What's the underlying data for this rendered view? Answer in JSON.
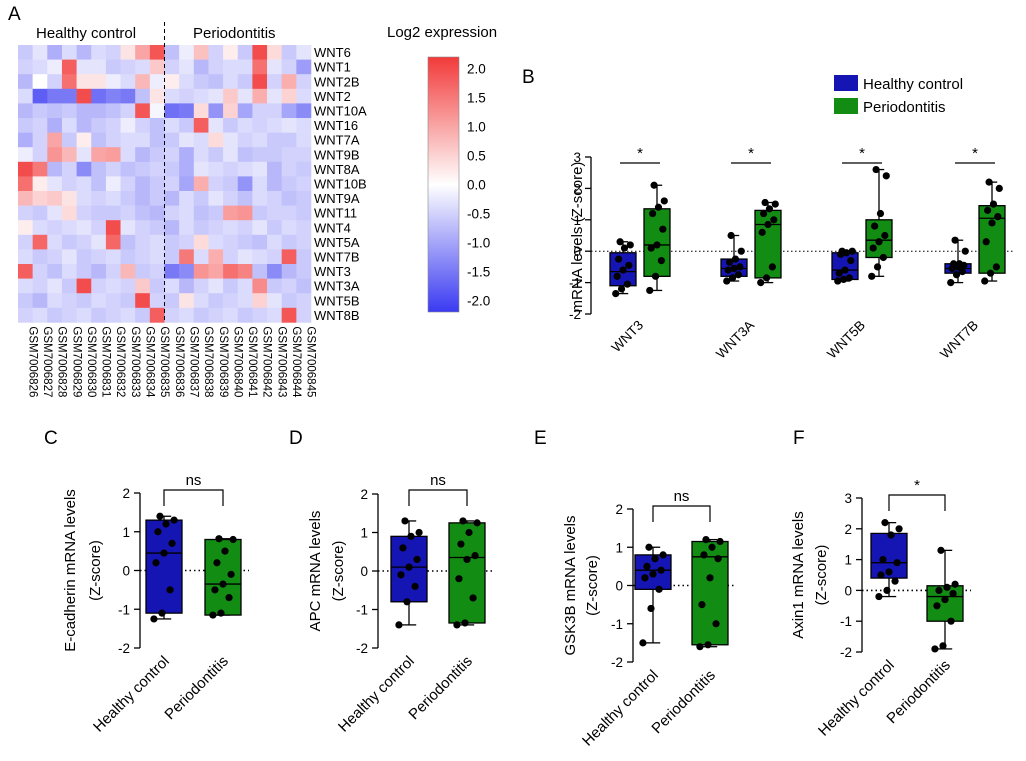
{
  "chart_data": [
    {
      "panel": "A",
      "type": "heatmap",
      "group_labels": [
        "Healthy control",
        "Periodontitis"
      ],
      "colorbar_title": "Log2 expression",
      "colorbar_ticks": [
        "2.0",
        "1.5",
        "1.0",
        "0.5",
        "0.0",
        "-0.5",
        "-1.0",
        "-1.5",
        "-2.0"
      ],
      "colorbar_range": [
        -2.2,
        2.2
      ],
      "colors": {
        "high": "#F23A3A",
        "mid": "#FFFFFF",
        "low": "#3A3AF2"
      },
      "rows": [
        "WNT6",
        "WNT1",
        "WNT2B",
        "WNT2",
        "WNT10A",
        "WNT16",
        "WNT7A",
        "WNT9B",
        "WNT8A",
        "WNT10B",
        "WNT9A",
        "WNT11",
        "WNT4",
        "WNT5A",
        "WNT7B",
        "WNT3",
        "WNT3A",
        "WNT5B",
        "WNT8B"
      ],
      "columns": [
        "GSM7006826",
        "GSM7006827",
        "GSM7006828",
        "GSM7006829",
        "GSM7006830",
        "GSM7006831",
        "GSM7006832",
        "GSM7006833",
        "GSM7006834",
        "GSM7006835",
        "GSM7006836",
        "GSM7006837",
        "GSM7006838",
        "GSM7006839",
        "GSM7006840",
        "GSM7006841",
        "GSM7006842",
        "GSM7006843",
        "GSM7006844",
        "GSM7006845"
      ],
      "values": [
        [
          -0.6,
          -0.3,
          -0.9,
          -0.4,
          -0.8,
          -0.4,
          -0.5,
          0.3,
          1.0,
          1.9,
          -0.7,
          -0.2,
          0.7,
          -0.5,
          0.2,
          -0.6,
          2.0,
          0.4,
          -0.6,
          -0.3
        ],
        [
          -0.5,
          -0.4,
          -0.2,
          1.8,
          -0.3,
          -0.3,
          -0.6,
          -0.5,
          -0.4,
          0.6,
          -0.5,
          -0.3,
          -0.8,
          -0.5,
          -0.4,
          -0.4,
          1.6,
          -0.3,
          -0.5,
          -1.1
        ],
        [
          -0.8,
          0.0,
          -0.5,
          1.6,
          0.3,
          0.3,
          -0.2,
          -0.4,
          0.8,
          -0.2,
          0.2,
          -0.4,
          -0.6,
          -0.7,
          -0.4,
          -0.6,
          2.0,
          -0.5,
          0.9,
          -0.5
        ],
        [
          -0.4,
          -1.8,
          -1.5,
          -1.5,
          2.0,
          -1.6,
          -1.4,
          -1.5,
          -0.7,
          0.3,
          -0.4,
          -0.5,
          -0.4,
          -0.3,
          0.6,
          -0.3,
          0.9,
          -0.3,
          0.5,
          -0.4
        ],
        [
          -0.8,
          -0.6,
          -0.7,
          -0.6,
          -0.8,
          -0.8,
          -0.7,
          -0.5,
          1.9,
          -0.1,
          -1.6,
          -1.5,
          0.4,
          -1.2,
          0.5,
          -1.0,
          -0.5,
          -0.5,
          -1.0,
          -1.3
        ],
        [
          -0.6,
          -0.5,
          -0.9,
          -0.4,
          -0.8,
          -0.6,
          -0.5,
          -0.2,
          -0.5,
          -0.7,
          -0.4,
          -0.6,
          1.8,
          -0.3,
          -0.6,
          -0.4,
          -0.5,
          -0.4,
          -0.3,
          -0.4
        ],
        [
          -0.9,
          -0.5,
          1.0,
          -0.6,
          0.2,
          -0.7,
          -0.5,
          -0.4,
          -0.4,
          -0.7,
          -0.6,
          -0.3,
          -0.4,
          0.4,
          -0.3,
          -0.5,
          -0.4,
          -0.6,
          -0.6,
          -0.4
        ],
        [
          -0.2,
          -0.5,
          1.2,
          0.8,
          -0.3,
          1.0,
          1.1,
          -0.4,
          -0.8,
          -0.6,
          -0.5,
          -0.9,
          -0.4,
          -0.6,
          -0.3,
          -0.7,
          -0.6,
          -0.6,
          -0.5,
          -0.5
        ],
        [
          2.0,
          1.5,
          -0.8,
          -0.5,
          -1.3,
          -0.7,
          -0.5,
          -0.7,
          -0.6,
          -0.5,
          -0.6,
          -0.9,
          -0.3,
          -0.4,
          -0.5,
          -0.4,
          -0.3,
          -0.8,
          -0.5,
          -0.6
        ],
        [
          1.6,
          0.2,
          -0.3,
          -0.5,
          -0.4,
          -0.7,
          -0.2,
          -0.5,
          -0.8,
          -0.6,
          -0.5,
          -1.0,
          0.9,
          -0.5,
          -0.6,
          -1.2,
          -0.4,
          -0.8,
          -0.6,
          -0.5
        ],
        [
          0.8,
          0.5,
          0.6,
          0.3,
          -0.4,
          -0.5,
          -0.4,
          -0.6,
          -0.8,
          -0.6,
          -0.8,
          -0.4,
          -0.6,
          -0.3,
          -0.5,
          -0.7,
          -0.4,
          -0.5,
          -0.7,
          -0.6
        ],
        [
          -0.5,
          -0.6,
          -0.3,
          0.4,
          -0.5,
          -0.6,
          -0.6,
          -0.5,
          -0.7,
          -0.8,
          -0.5,
          -0.4,
          -0.7,
          -0.6,
          1.1,
          1.2,
          -0.6,
          -0.5,
          -0.5,
          -0.6
        ],
        [
          0.2,
          -0.4,
          -0.5,
          -0.4,
          -0.3,
          -0.5,
          2.0,
          -0.3,
          -0.5,
          -0.6,
          -0.8,
          -0.4,
          -0.6,
          -0.5,
          -0.4,
          -0.5,
          -0.3,
          -0.6,
          -0.4,
          -0.5
        ],
        [
          -0.5,
          1.7,
          -0.4,
          -0.6,
          -0.5,
          -0.3,
          1.7,
          -0.7,
          -0.5,
          -0.4,
          -0.6,
          -0.5,
          0.4,
          -0.4,
          -0.5,
          -0.6,
          -0.7,
          -0.4,
          -0.6,
          -0.5
        ],
        [
          -0.4,
          -0.6,
          -0.5,
          -0.3,
          -0.6,
          -0.5,
          -0.4,
          -0.6,
          -0.5,
          -0.4,
          -0.6,
          1.5,
          -0.4,
          0.9,
          -0.5,
          -0.3,
          -0.4,
          -0.5,
          1.8,
          -0.6
        ],
        [
          1.8,
          -0.5,
          -0.7,
          -0.4,
          -0.6,
          -0.8,
          -0.5,
          0.8,
          -0.6,
          -0.5,
          -1.5,
          -1.3,
          1.2,
          1.0,
          1.6,
          1.4,
          -0.7,
          -1.3,
          -0.8,
          -0.6
        ],
        [
          -0.4,
          -0.5,
          -0.3,
          -0.6,
          2.0,
          -0.5,
          -0.4,
          -0.5,
          0.6,
          -0.6,
          -0.4,
          -0.8,
          -0.5,
          -0.3,
          -0.6,
          -0.4,
          1.3,
          -0.6,
          -0.5,
          -0.7
        ],
        [
          -0.6,
          -0.8,
          -0.4,
          -0.5,
          -0.6,
          -0.4,
          -0.5,
          -0.6,
          2.0,
          -0.5,
          -0.6,
          0.3,
          -0.4,
          -0.6,
          -0.5,
          -0.4,
          0.5,
          -0.3,
          -0.6,
          -0.5
        ],
        [
          -0.5,
          -0.4,
          -0.6,
          -0.5,
          -0.4,
          -0.6,
          -0.5,
          -0.4,
          -0.6,
          1.8,
          -0.5,
          -0.4,
          -0.6,
          -0.5,
          -0.4,
          -0.6,
          -0.5,
          -0.4,
          1.9,
          -0.5
        ]
      ]
    },
    {
      "panel": "B",
      "type": "box",
      "ylabel": "mRNA levels  (Z-score)",
      "ylim": [
        -2,
        3
      ],
      "yticks": [
        -2,
        -1,
        0,
        1,
        2,
        3
      ],
      "legend": {
        "position": "top-right",
        "entries": [
          "Healthy control",
          "Periodontitis"
        ]
      },
      "colors": {
        "Healthy control": "#1515B4",
        "Periodontitis": "#138C13"
      },
      "categories": [
        "WNT3",
        "WNT3A",
        "WNT5B",
        "WNT7B"
      ],
      "significance": [
        "*",
        "*",
        "*",
        "*"
      ],
      "series": [
        {
          "name": "Healthy control",
          "boxes": [
            {
              "min": -1.35,
              "q1": -1.1,
              "median": -0.65,
              "q3": -0.05,
              "max": 0.3
            },
            {
              "min": -0.95,
              "q1": -0.8,
              "median": -0.55,
              "q3": -0.25,
              "max": 0.5
            },
            {
              "min": -0.95,
              "q1": -0.9,
              "median": -0.6,
              "q3": -0.05,
              "max": 0.0
            },
            {
              "min": -1.0,
              "q1": -0.7,
              "median": -0.55,
              "q3": -0.4,
              "max": 0.35
            }
          ],
          "points": [
            [
              -1.35,
              -1.2,
              -1.05,
              -0.8,
              -0.6,
              -0.45,
              -0.25,
              0.1,
              0.2,
              0.3
            ],
            [
              -0.95,
              -0.85,
              -0.75,
              -0.6,
              -0.55,
              -0.5,
              -0.35,
              -0.25,
              0.0,
              0.5
            ],
            [
              -0.95,
              -0.9,
              -0.85,
              -0.7,
              -0.6,
              -0.3,
              -0.1,
              -0.05,
              0.0,
              0.0
            ],
            [
              -1.0,
              -0.75,
              -0.65,
              -0.55,
              -0.5,
              -0.45,
              -0.4,
              -0.4,
              0.0,
              0.35
            ]
          ]
        },
        {
          "name": "Periodontitis",
          "boxes": [
            {
              "min": -1.25,
              "q1": -0.8,
              "median": 0.2,
              "q3": 1.35,
              "max": 2.1
            },
            {
              "min": -1.0,
              "q1": -0.85,
              "median": 0.85,
              "q3": 1.3,
              "max": 1.55
            },
            {
              "min": -0.8,
              "q1": -0.2,
              "median": 0.35,
              "q3": 1.0,
              "max": 2.6
            },
            {
              "min": -0.95,
              "q1": -0.7,
              "median": 1.05,
              "q3": 1.45,
              "max": 2.2
            }
          ],
          "points": [
            [
              -1.25,
              -0.8,
              -0.3,
              0.1,
              0.2,
              0.7,
              1.2,
              1.4,
              1.6,
              2.1
            ],
            [
              -1.0,
              -0.85,
              -0.5,
              0.6,
              0.85,
              1.0,
              1.2,
              1.35,
              1.5,
              1.55
            ],
            [
              -0.8,
              -0.5,
              -0.2,
              0.1,
              0.3,
              0.5,
              0.8,
              1.2,
              2.4,
              2.6
            ],
            [
              -0.95,
              -0.7,
              -0.5,
              0.3,
              0.9,
              1.1,
              1.3,
              1.5,
              2.0,
              2.2
            ]
          ]
        }
      ]
    },
    {
      "panel": "C",
      "type": "box",
      "ylabel_line1": "E-cadherin mRNA levels",
      "ylabel_line2": "(Z-score)",
      "ylim": [
        -2,
        2
      ],
      "yticks": [
        -2,
        -1,
        0,
        1,
        2
      ],
      "categories": [
        "Healthy control",
        "Periodontitis"
      ],
      "significance": "ns",
      "boxes": [
        {
          "min": -1.25,
          "q1": -1.1,
          "median": 0.45,
          "q3": 1.3,
          "max": 1.4
        },
        {
          "min": -1.15,
          "q1": -1.15,
          "median": -0.35,
          "q3": 0.8,
          "max": 0.82
        }
      ],
      "points": [
        [
          -1.25,
          -1.1,
          -0.5,
          0.2,
          0.45,
          0.7,
          1.0,
          1.2,
          1.3,
          1.4
        ],
        [
          -1.15,
          -1.1,
          -0.7,
          -0.5,
          -0.35,
          -0.1,
          0.2,
          0.5,
          0.8,
          0.82
        ]
      ]
    },
    {
      "panel": "D",
      "type": "box",
      "ylabel_line1": "APC mRNA levels",
      "ylabel_line2": "(Z-score)",
      "ylim": [
        -2,
        2
      ],
      "yticks": [
        -2,
        -1,
        0,
        1,
        2
      ],
      "categories": [
        "Healthy control",
        "Periodontitis"
      ],
      "significance": "ns",
      "boxes": [
        {
          "min": -1.4,
          "q1": -0.8,
          "median": 0.1,
          "q3": 0.9,
          "max": 1.3
        },
        {
          "min": -1.4,
          "q1": -1.35,
          "median": 0.35,
          "q3": 1.25,
          "max": 1.3
        }
      ],
      "points": [
        [
          -1.4,
          -0.8,
          -0.4,
          -0.1,
          0.1,
          0.3,
          0.6,
          0.9,
          1.0,
          1.3
        ],
        [
          -1.4,
          -1.35,
          -0.7,
          -0.2,
          0.3,
          0.4,
          0.7,
          1.0,
          1.25,
          1.3
        ]
      ]
    },
    {
      "panel": "E",
      "type": "box",
      "ylabel_line1": "GSK3B mRNA levels",
      "ylabel_line2": "(Z-score)",
      "ylim": [
        -2,
        2
      ],
      "yticks": [
        -2,
        -1,
        0,
        1,
        2
      ],
      "categories": [
        "Healthy control",
        "Periodontitis"
      ],
      "significance": "ns",
      "boxes": [
        {
          "min": -1.5,
          "q1": -0.1,
          "median": 0.4,
          "q3": 0.8,
          "max": 1.0
        },
        {
          "min": -1.6,
          "q1": -1.55,
          "median": 0.75,
          "q3": 1.15,
          "max": 1.2
        }
      ],
      "points": [
        [
          -1.5,
          -0.6,
          -0.1,
          0.2,
          0.3,
          0.4,
          0.5,
          0.7,
          0.8,
          1.0
        ],
        [
          -1.6,
          -1.55,
          -1.0,
          -0.5,
          0.2,
          0.7,
          0.8,
          1.0,
          1.15,
          1.2
        ]
      ]
    },
    {
      "panel": "F",
      "type": "box",
      "ylabel_line1": "Axin1 mRNA levels",
      "ylabel_line2": "(Z-score)",
      "ylim": [
        -2,
        3
      ],
      "yticks": [
        -2,
        -1,
        0,
        1,
        2,
        3
      ],
      "categories": [
        "Healthy control",
        "Periodontitis"
      ],
      "significance": "*",
      "boxes": [
        {
          "min": -0.2,
          "q1": 0.4,
          "median": 0.9,
          "q3": 1.85,
          "max": 2.2
        },
        {
          "min": -1.9,
          "q1": -1.0,
          "median": -0.2,
          "q3": 0.15,
          "max": 1.3
        }
      ],
      "points": [
        [
          -0.2,
          0.0,
          0.3,
          0.5,
          0.6,
          0.9,
          1.0,
          1.8,
          2.0,
          2.2
        ],
        [
          -1.9,
          -1.8,
          -1.0,
          -0.5,
          -0.3,
          -0.1,
          0.0,
          0.1,
          0.2,
          1.3
        ]
      ]
    }
  ]
}
